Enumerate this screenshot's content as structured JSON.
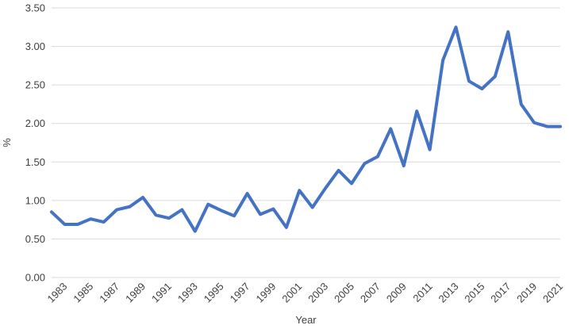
{
  "chart_data": {
    "type": "line",
    "title": "",
    "xlabel": "Year",
    "ylabel": "%",
    "ylim": [
      0,
      3.5
    ],
    "yticks": [
      "0.00",
      "0.50",
      "1.00",
      "1.50",
      "2.00",
      "2.50",
      "3.00",
      "3.50"
    ],
    "grid": true,
    "legend": "none",
    "colors": {
      "line": "#4472c4",
      "grid": "#d9d9d9",
      "text": "#404040"
    },
    "x": [
      1982,
      1983,
      1984,
      1985,
      1986,
      1987,
      1988,
      1989,
      1990,
      1991,
      1992,
      1993,
      1994,
      1995,
      1996,
      1997,
      1998,
      1999,
      2000,
      2001,
      2002,
      2003,
      2004,
      2005,
      2006,
      2007,
      2008,
      2009,
      2010,
      2011,
      2012,
      2013,
      2014,
      2015,
      2016,
      2017,
      2018,
      2019,
      2020,
      2021
    ],
    "xtick_labels": [
      "1983",
      "1985",
      "1987",
      "1989",
      "1991",
      "1993",
      "1995",
      "1997",
      "1999",
      "2001",
      "2003",
      "2005",
      "2007",
      "2009",
      "2011",
      "2013",
      "2015",
      "2017",
      "2019",
      "2021"
    ],
    "series": [
      {
        "name": "",
        "values": [
          0.85,
          0.69,
          0.69,
          0.76,
          0.72,
          0.88,
          0.92,
          1.04,
          0.81,
          0.77,
          0.88,
          0.6,
          0.95,
          0.87,
          0.8,
          1.09,
          0.82,
          0.89,
          0.65,
          1.13,
          0.91,
          1.16,
          1.39,
          1.22,
          1.48,
          1.57,
          1.93,
          1.45,
          2.16,
          1.66,
          2.82,
          3.25,
          2.55,
          2.45,
          2.61,
          3.19,
          2.25,
          2.01,
          1.96,
          1.96
        ]
      }
    ]
  }
}
